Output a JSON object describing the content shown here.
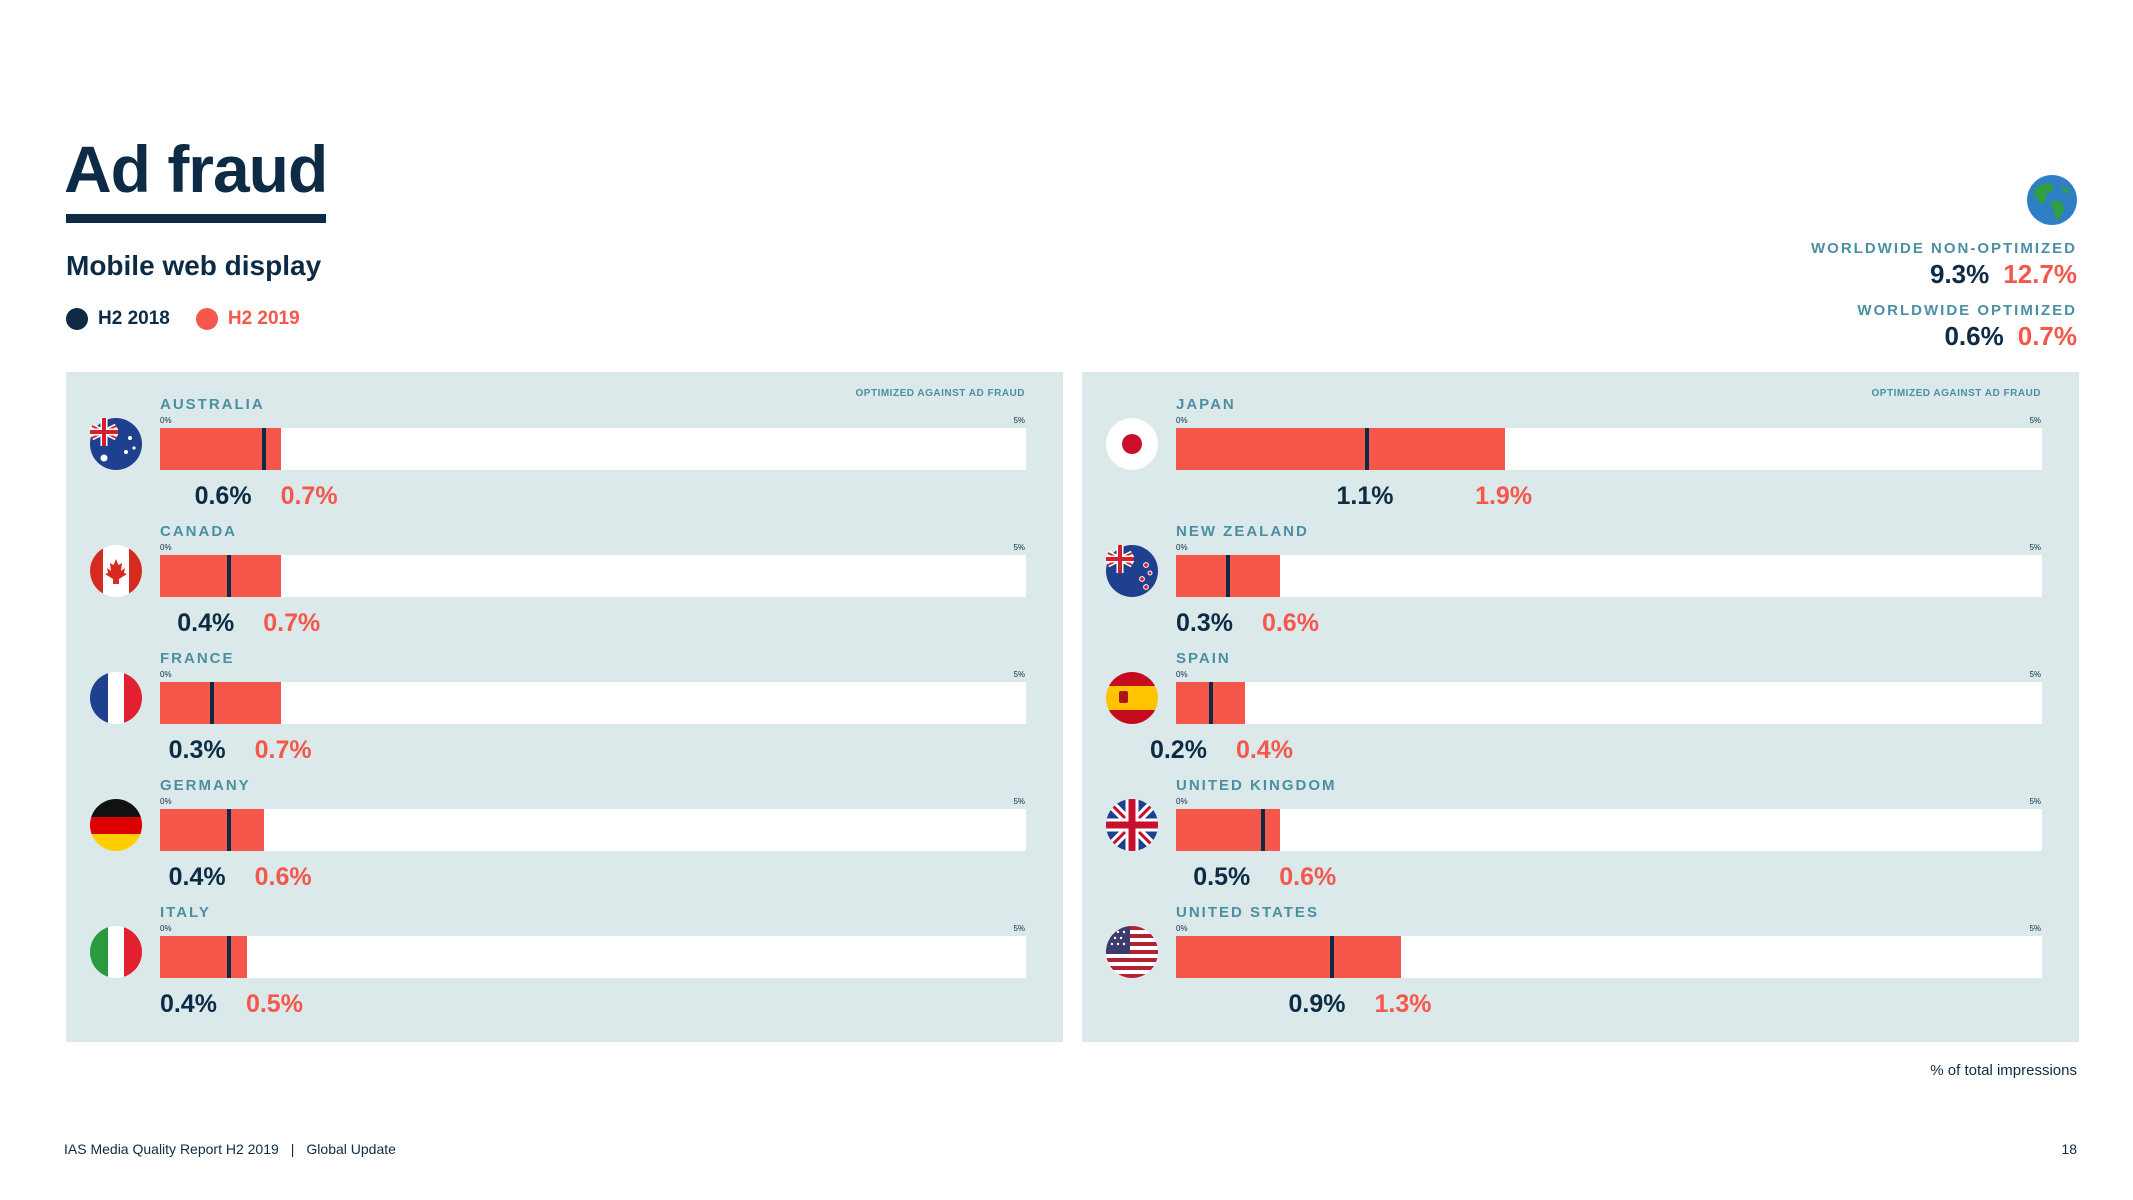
{
  "page": {
    "title": "Ad fraud",
    "subtitle": "Mobile web display",
    "legend": [
      {
        "label": "H2 2018",
        "color": "#0d2b45"
      },
      {
        "label": "H2 2019",
        "color": "#f5574b"
      }
    ],
    "worldwide": {
      "non_optimized": {
        "label": "WORLDWIDE NON-OPTIMIZED",
        "h2_2018": "9.3%",
        "h2_2019": "12.7%"
      },
      "optimized": {
        "label": "WORLDWIDE OPTIMIZED",
        "h2_2018": "0.6%",
        "h2_2019": "0.7%"
      }
    },
    "panel_note": "OPTIMIZED AGAINST AD FRAUD",
    "tick_start": "0%",
    "tick_end": "5%",
    "footnote": "% of total impressions",
    "footer": {
      "report": "IAS Media Quality Report H2 2019",
      "separator": "|",
      "section": "Global Update",
      "page_number": "18"
    }
  },
  "chart_data": [
    {
      "type": "bar",
      "xlim": [
        0,
        5
      ],
      "unit": "%",
      "series": [
        {
          "name": "H2 2018",
          "color": "#0d2b45"
        },
        {
          "name": "H2 2019",
          "color": "#f5574b"
        }
      ],
      "rows": [
        {
          "country": "AUSTRALIA",
          "flag": "australia-flag-icon",
          "h2_2018": 0.6,
          "h2_2019": 0.7,
          "label_2018": "0.6%",
          "label_2019": "0.7%"
        },
        {
          "country": "CANADA",
          "flag": "canada-flag-icon",
          "h2_2018": 0.4,
          "h2_2019": 0.7,
          "label_2018": "0.4%",
          "label_2019": "0.7%"
        },
        {
          "country": "FRANCE",
          "flag": "france-flag-icon",
          "h2_2018": 0.3,
          "h2_2019": 0.7,
          "label_2018": "0.3%",
          "label_2019": "0.7%"
        },
        {
          "country": "GERMANY",
          "flag": "germany-flag-icon",
          "h2_2018": 0.4,
          "h2_2019": 0.6,
          "label_2018": "0.4%",
          "label_2019": "0.6%"
        },
        {
          "country": "ITALY",
          "flag": "italy-flag-icon",
          "h2_2018": 0.4,
          "h2_2019": 0.5,
          "label_2018": "0.4%",
          "label_2019": "0.5%"
        }
      ]
    },
    {
      "type": "bar",
      "xlim": [
        0,
        5
      ],
      "unit": "%",
      "series": [
        {
          "name": "H2 2018",
          "color": "#0d2b45"
        },
        {
          "name": "H2 2019",
          "color": "#f5574b"
        }
      ],
      "rows": [
        {
          "country": "JAPAN",
          "flag": "japan-flag-icon",
          "h2_2018": 1.1,
          "h2_2019": 1.9,
          "label_2018": "1.1%",
          "label_2019": "1.9%"
        },
        {
          "country": "NEW ZEALAND",
          "flag": "new-zealand-flag-icon",
          "h2_2018": 0.3,
          "h2_2019": 0.6,
          "label_2018": "0.3%",
          "label_2019": "0.6%"
        },
        {
          "country": "SPAIN",
          "flag": "spain-flag-icon",
          "h2_2018": 0.2,
          "h2_2019": 0.4,
          "label_2018": "0.2%",
          "label_2019": "0.4%"
        },
        {
          "country": "UNITED KINGDOM",
          "flag": "united-kingdom-flag-icon",
          "h2_2018": 0.5,
          "h2_2019": 0.6,
          "label_2018": "0.5%",
          "label_2019": "0.6%"
        },
        {
          "country": "UNITED STATES",
          "flag": "united-states-flag-icon",
          "h2_2018": 0.9,
          "h2_2019": 1.3,
          "label_2018": "0.9%",
          "label_2019": "1.3%"
        }
      ]
    }
  ]
}
